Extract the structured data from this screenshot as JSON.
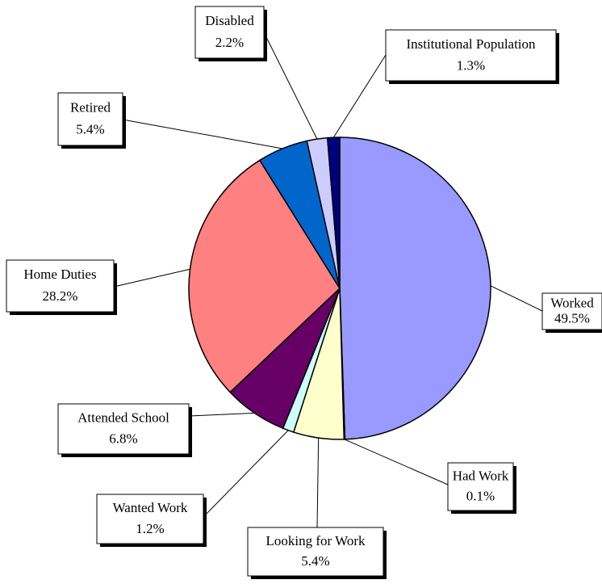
{
  "chart_data": {
    "type": "pie",
    "categories": [
      "Worked",
      "Had Work",
      "Looking for Work",
      "Wanted Work",
      "Attended School",
      "Home Duties",
      "Retired",
      "Disabled",
      "Institutional Population"
    ],
    "values": [
      49.5,
      0.1,
      5.4,
      1.2,
      6.8,
      28.2,
      5.4,
      2.2,
      1.3
    ],
    "value_labels": [
      "49.5%",
      "0.1%",
      "5.4%",
      "1.2%",
      "6.8%",
      "28.2%",
      "5.4%",
      "2.2%",
      "1.3%"
    ],
    "colors": [
      "#9999ff",
      "#993366",
      "#ffffcc",
      "#ccffff",
      "#660066",
      "#ff8080",
      "#0066cc",
      "#ccccff",
      "#000080"
    ]
  }
}
